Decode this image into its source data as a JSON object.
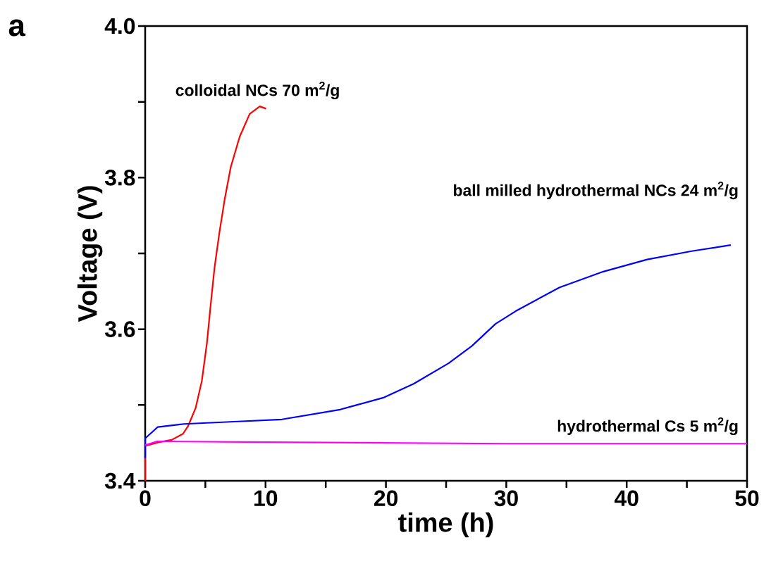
{
  "chart_data": {
    "type": "line",
    "xlabel": "time (h)",
    "ylabel": "Voltage (V)",
    "annotations": [
      "a"
    ],
    "xlim": [
      0,
      50
    ],
    "ylim": [
      3.4,
      4.0
    ],
    "xticks": [
      0,
      {
        "value": 5,
        "label": null
      },
      10,
      {
        "value": 15,
        "label": null
      },
      20,
      {
        "value": 25,
        "label": null
      },
      30,
      {
        "value": 35,
        "label": null
      },
      40,
      {
        "value": 45,
        "label": null
      },
      50
    ],
    "yticks": [
      3.4,
      {
        "value": 3.5,
        "label": null
      },
      3.6,
      {
        "value": 3.7,
        "label": null
      },
      3.8,
      {
        "value": 3.9,
        "label": null
      },
      {
        "value": 4.0,
        "label": "4.0"
      }
    ],
    "legend": false,
    "series": [
      {
        "name": "colloidal NCs 70 m$^{2}$/g",
        "color": "#ff0000",
        "x": [
          0,
          0,
          1.15,
          2.2,
          3.14,
          3.56,
          4.19,
          4.71,
          5.13,
          5.44,
          5.76,
          6.17,
          6.6,
          7.11,
          7.85,
          8.68,
          9.52,
          10.04
        ],
        "values": [
          3.4,
          3.446,
          3.451,
          3.454,
          3.462,
          3.472,
          3.496,
          3.532,
          3.582,
          3.632,
          3.681,
          3.728,
          3.771,
          3.814,
          3.854,
          3.884,
          3.894,
          3.891
        ]
      },
      {
        "name": "ball milled hydrothermal NCs 24 m$^{2}$/g",
        "color": "#0000ff",
        "x": [
          0,
          0,
          1.05,
          3.24,
          7.4,
          11.36,
          16.2,
          19.85,
          22.3,
          25.2,
          27.15,
          29.1,
          30.8,
          34.4,
          38.06,
          41.7,
          45.4,
          48.65
        ],
        "values": [
          3.43,
          3.456,
          3.471,
          3.475,
          3.478,
          3.481,
          3.494,
          3.51,
          3.528,
          3.555,
          3.578,
          3.607,
          3.624,
          3.655,
          3.676,
          3.692,
          3.703,
          3.711
        ]
      },
      {
        "name": "hydrothermal Cs 5 m$^{2}$/g",
        "color": "#ff00ff",
        "x": [
          0,
          1,
          10,
          30,
          50
        ],
        "values": [
          3.447,
          3.452,
          3.451,
          3.449,
          3.449
        ]
      }
    ]
  }
}
